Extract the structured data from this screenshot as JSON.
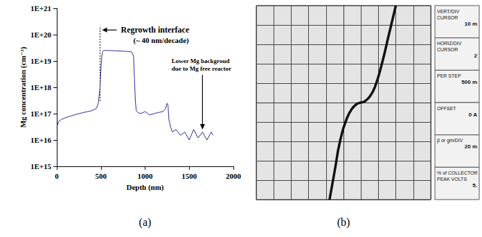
{
  "chart_data": [
    {
      "type": "line",
      "label": "(a)",
      "x_label": "Depth (nm)",
      "y_label": "Mg concentration (cm⁻³)",
      "log": "y",
      "grid": false,
      "color": "#2b2b9c",
      "x": [
        0,
        20,
        50,
        100,
        150,
        200,
        250,
        300,
        350,
        400,
        450,
        470,
        490,
        500,
        510,
        520,
        530,
        550,
        600,
        700,
        800,
        850,
        870,
        880,
        890,
        900,
        920,
        950,
        1000,
        1050,
        1100,
        1150,
        1200,
        1230,
        1250,
        1260,
        1270,
        1290,
        1310,
        1350,
        1400,
        1450,
        1500,
        1550,
        1600,
        1650,
        1700,
        1750,
        1770
      ],
      "values": [
        3e+16,
        5e+16,
        6e+16,
        7e+16,
        8e+16,
        9e+16,
        1e+17,
        1.1e+17,
        1.2e+17,
        1.3e+17,
        1.6e+17,
        2.5e+17,
        1e+18,
        5e+18,
        1.5e+19,
        2.3e+19,
        2.5e+19,
        2.5e+19,
        2.5e+19,
        2.4e+19,
        2.3e+19,
        2.2e+19,
        1.5e+19,
        2e+18,
        3e+17,
        1.3e+17,
        1.1e+17,
        1e+17,
        1.2e+17,
        9e+16,
        1e+17,
        1.1e+17,
        1.2e+17,
        1.5e+17,
        2.5e+17,
        2e+17,
        6e+16,
        3e+16,
        2e+16,
        2.5e+16,
        1.5e+16,
        2e+16,
        1e+16,
        2.5e+16,
        1.2e+16,
        2e+16,
        1e+16,
        2e+16,
        1.5e+16
      ],
      "xlim": [
        0,
        2000
      ],
      "xticks": [
        0,
        500,
        1000,
        1500,
        2000
      ],
      "ylim": [
        1000000000000000.0,
        1e+21
      ],
      "yticks": [
        {
          "value": 1000000000000000.0,
          "label": "1E+15"
        },
        {
          "value": 1e+16,
          "label": "1E+16"
        },
        {
          "value": 1e+17,
          "label": "1E+17"
        },
        {
          "value": 1e+18,
          "label": "1E+18"
        },
        {
          "value": 1e+19,
          "label": "1E+19"
        },
        {
          "value": 1e+20,
          "label": "1E+20"
        },
        {
          "value": 1e+21,
          "label": "1E+21"
        }
      ],
      "annotations": [
        {
          "text": "Regrowth interface",
          "subtext": "(~ 40 nm/decade)",
          "x": 490,
          "y": 1.5e+20,
          "ylim": [
            3e+17,
            1.5e+20
          ]
        },
        {
          "text": "Lower Mg backgroud",
          "subtext": "due to Mg free reactor",
          "x": 1300,
          "y": 1e+19,
          "arrow_to": [
            1650,
            2.5e+16
          ]
        }
      ]
    },
    {
      "type": "line",
      "label": "(b)",
      "grid": true,
      "tick_labels": false,
      "color": "#111111",
      "x": [
        -0.8,
        -0.5,
        -0.2,
        0.2,
        0.5,
        0.8,
        1.0,
        1.2,
        1.5,
        1.8,
        2.2,
        2.6,
        3.0
      ],
      "values": [
        -5,
        -3.5,
        -2,
        -0.8,
        -0.3,
        -0.05,
        0,
        0.05,
        0.3,
        0.8,
        2,
        3.5,
        5
      ],
      "xlim": [
        -5,
        5
      ],
      "xticks": [
        -5,
        -4,
        -3,
        -2,
        -1,
        0,
        1,
        2,
        3,
        4,
        5
      ],
      "ylim": [
        -5,
        5
      ],
      "yticks": [
        -5,
        -4,
        -3,
        -2,
        -1,
        0,
        1,
        2,
        3,
        4,
        5
      ],
      "readouts": [
        [
          "VERT/DIV",
          "CURSOR",
          "10 m"
        ],
        [
          "HORIZ/DIV",
          "CURSOR",
          "2"
        ],
        [
          "PER STEP",
          "500 m"
        ],
        [
          "OFFSET",
          "0 A"
        ],
        [
          "β or gm/DIV",
          "20 m"
        ],
        [
          "% of COLLECTOR PEAK VOLTS",
          "5."
        ]
      ]
    }
  ]
}
